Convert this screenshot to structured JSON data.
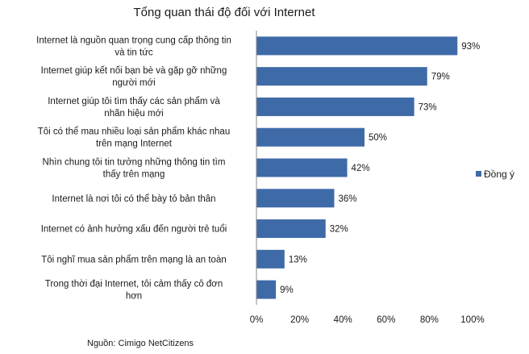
{
  "chart_data": {
    "type": "bar",
    "orientation": "horizontal",
    "title": "Tổng quan thái độ đối với Internet",
    "categories": [
      [
        "Internet là nguồn quan trọng cung cấp thông tin",
        "và tin tức"
      ],
      [
        "Internet giúp kết nối bạn bè và gặp gỡ những",
        "người mới"
      ],
      [
        "Internet giúp tôi tìm thấy các sản phẩm và",
        "nhãn hiệu mới"
      ],
      [
        "Tôi có thể mau nhiều loại sản phẩm khác nhau",
        "trên mạng Internet"
      ],
      [
        "Nhìn chung tôi tin tưởng những thông tin tìm",
        "thấy trên mạng"
      ],
      [
        "Internet là nơi tôi có thể bày tỏ bản thân"
      ],
      [
        "Internet có ảnh hưởng xấu đến người trẻ tuổi"
      ],
      [
        "Tôi nghĩ mua sản phẩm trên mạng là an toàn"
      ],
      [
        "Trong thời đại Internet, tôi cảm thấy cô đơn",
        "hơn"
      ]
    ],
    "series": [
      {
        "name": "Đồng ý",
        "values": [
          93,
          79,
          73,
          50,
          42,
          36,
          32,
          13,
          9
        ],
        "labels": [
          "93%",
          "79%",
          "73%",
          "50%",
          "42%",
          "36%",
          "32%",
          "13%",
          "9%"
        ],
        "color": "#3f6aa8"
      }
    ],
    "xlim": [
      0,
      100
    ],
    "xticks": [
      0,
      20,
      40,
      60,
      80,
      100
    ],
    "xtick_labels": [
      "0%",
      "20%",
      "40%",
      "60%",
      "80%",
      "100%"
    ],
    "grid": false,
    "legend_position": "right",
    "source": "Nguồn: Cimigo NetCitizens"
  }
}
